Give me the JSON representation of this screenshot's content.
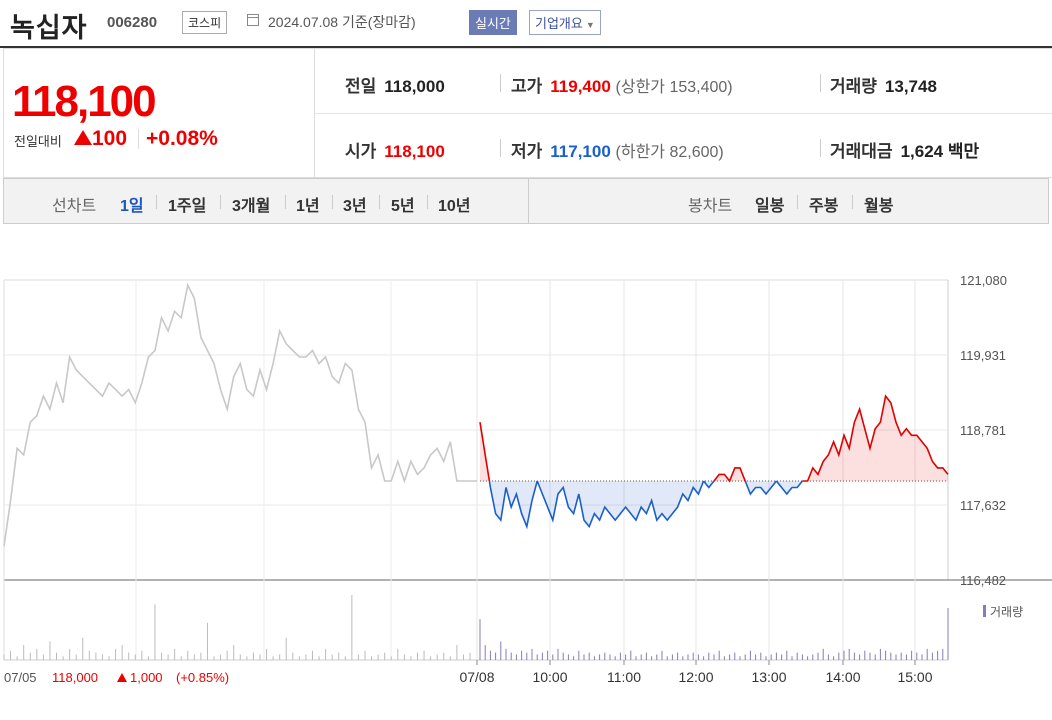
{
  "header": {
    "name": "녹십자",
    "code": "006280",
    "market": "코스피",
    "date": "2024.07.08 기준(장마감)",
    "realtime_button": "실시간",
    "company_button": "기업개요"
  },
  "quote": {
    "price": "118,100",
    "diff_label": "전일대비",
    "diff_value": "100",
    "diff_pct": "+0.08%",
    "prev_close_label": "전일",
    "prev_close": "118,000",
    "high_label": "고가",
    "high": "119,400",
    "upper_limit": "(상한가 153,400)",
    "volume_label": "거래량",
    "volume": "13,748",
    "open_label": "시가",
    "open": "118,100",
    "low_label": "저가",
    "low": "117,100",
    "lower_limit": "(하한가 82,600)",
    "amount_label": "거래대금",
    "amount": "1,624",
    "amount_unit": "백만"
  },
  "periods": {
    "line_label": "선차트",
    "line_items": [
      "1일",
      "1주일",
      "3개월",
      "1년",
      "3년",
      "5년",
      "10년"
    ],
    "line_active": "1일",
    "candle_label": "봉차트",
    "candle_items": [
      "일봉",
      "주봉",
      "월봉"
    ]
  },
  "colors": {
    "up": "#e00000",
    "down": "#1a5fcc",
    "prev_day": "#c8c8c8",
    "volume_prev": "#bbbbbb",
    "volume_today": "#8a7bb8"
  },
  "chart_data": {
    "type": "line",
    "y_ticks": [
      "121,080",
      "119,931",
      "118,781",
      "117,632",
      "116,482"
    ],
    "ylim": [
      116482,
      121080
    ],
    "baseline": 118000,
    "x_ticks": [
      "07/08",
      "10:00",
      "11:00",
      "12:00",
      "13:00",
      "14:00",
      "15:00"
    ],
    "prev_day_label": "07/05",
    "prev_day_close": "118,000",
    "prev_day_change": "1,000",
    "prev_day_pct": "(+0.85%)",
    "volume_legend": "거래량",
    "series": [
      {
        "values": [
          117000,
          117700,
          118500,
          118400,
          118900,
          119000,
          119300,
          119100,
          119500,
          119200,
          119900,
          119700,
          119600,
          119500,
          119400,
          119300,
          119500,
          119400,
          119300,
          119400,
          119200,
          119500,
          119900,
          120000,
          120500,
          120300,
          120600,
          120500,
          121000,
          120800,
          120200,
          120000,
          119800,
          119400,
          119100,
          119600,
          119800,
          119400,
          119300,
          119700,
          119400,
          119800,
          120300,
          120100,
          120000,
          119900,
          119900,
          120000,
          119800,
          119900,
          119600,
          119500,
          119800,
          119700,
          119100,
          118900,
          118200,
          118400,
          118000,
          118000,
          118300,
          118000,
          118300,
          118100,
          118200,
          118400,
          118500,
          118300,
          118600,
          118000,
          118000,
          118000
        ]
      },
      {
        "values": [
          118900,
          118400,
          117900,
          117500,
          117400,
          117900,
          117600,
          117800,
          117500,
          117300,
          117700,
          118000,
          117800,
          117600,
          117400,
          117800,
          117900,
          117600,
          117500,
          117800,
          117400,
          117300,
          117500,
          117400,
          117600,
          117500,
          117400,
          117500,
          117600,
          117500,
          117400,
          117600,
          117500,
          117700,
          117400,
          117500,
          117400,
          117500,
          117600,
          117800,
          117700,
          117900,
          117800,
          118000,
          117900,
          118000,
          118100,
          118100,
          118000,
          118200,
          118200,
          118000,
          117800,
          117900,
          117900,
          117800,
          117900,
          118000,
          117900,
          117800,
          117900,
          117900,
          118000,
          118000,
          118200,
          118100,
          118300,
          118400,
          118600,
          118400,
          118700,
          118500,
          118900,
          119100,
          118800,
          118500,
          118800,
          118900,
          119300,
          119200,
          118900,
          118700,
          118800,
          118700,
          118700,
          118600,
          118500,
          118300,
          118200,
          118200,
          118100
        ]
      }
    ],
    "volume": {
      "prev_day": [
        3,
        5,
        2,
        8,
        4,
        6,
        3,
        10,
        4,
        2,
        6,
        3,
        12,
        5,
        4,
        3,
        2,
        6,
        8,
        4,
        3,
        5,
        2,
        30,
        4,
        3,
        6,
        2,
        5,
        3,
        4,
        20,
        2,
        3,
        5,
        8,
        3,
        2,
        4,
        3,
        6,
        2,
        3,
        12,
        4,
        2,
        3,
        5,
        2,
        6,
        3,
        4,
        2,
        35,
        3,
        5,
        2,
        3,
        4,
        2,
        6,
        3,
        2,
        4,
        5,
        2,
        3,
        4,
        2,
        8,
        3,
        4
      ],
      "today": [
        22,
        8,
        5,
        4,
        10,
        6,
        4,
        3,
        5,
        4,
        6,
        3,
        4,
        5,
        3,
        6,
        4,
        3,
        2,
        5,
        3,
        4,
        2,
        3,
        4,
        3,
        2,
        4,
        3,
        5,
        2,
        3,
        4,
        2,
        3,
        5,
        2,
        3,
        4,
        2,
        3,
        4,
        3,
        2,
        4,
        3,
        5,
        2,
        3,
        4,
        2,
        3,
        5,
        3,
        4,
        2,
        3,
        4,
        3,
        5,
        2,
        4,
        3,
        2,
        3,
        4,
        6,
        3,
        2,
        4,
        5,
        6,
        4,
        3,
        5,
        4,
        3,
        6,
        5,
        4,
        3,
        4,
        3,
        5,
        4,
        3,
        6,
        4,
        5,
        6,
        28
      ]
    }
  }
}
